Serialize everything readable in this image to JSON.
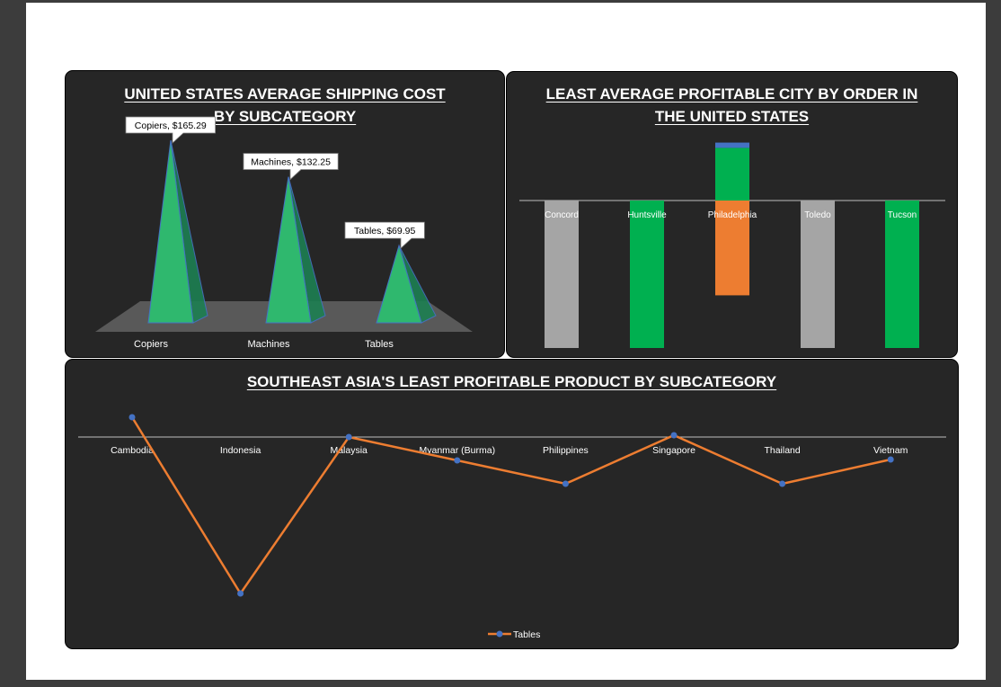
{
  "colors": {
    "panel_bg": "#262626",
    "pyramid_green": "#2fb86e",
    "green": "#00b050",
    "gray": "#a5a5a5",
    "orange": "#ed7d31",
    "blue": "#4472c4",
    "axis": "#bfbfbf",
    "text": "#ffffff"
  },
  "charts": {
    "shipping": {
      "title_line1": "UNITED STATES AVERAGE SHIPPING COST",
      "title_line2": "BY SUBCATEGORY"
    },
    "city": {
      "title_line1": "LEAST AVERAGE PROFITABLE CITY BY ORDER IN",
      "title_line2": "THE UNITED STATES"
    },
    "sea": {
      "title": "SOUTHEAST ASIA'S LEAST PROFITABLE PRODUCT BY SUBCATEGORY"
    }
  },
  "chart_data": [
    {
      "type": "bar",
      "style": "3d-pyramid",
      "title": "UNITED STATES AVERAGE SHIPPING COST BY SUBCATEGORY",
      "categories": [
        "Copiers",
        "Machines",
        "Tables"
      ],
      "values": [
        165.29,
        132.25,
        69.95
      ],
      "data_labels": [
        "Copiers, $165.29",
        "Machines, $132.25",
        "Tables, $69.95"
      ],
      "ylim": [
        0,
        165.29
      ]
    },
    {
      "type": "bar",
      "style": "stacked",
      "title": "LEAST AVERAGE PROFITABLE CITY BY ORDER IN THE UNITED STATES",
      "categories": [
        "Concord",
        "Huntsville",
        "Philadelphia",
        "Toledo",
        "Tucson"
      ],
      "series": [
        {
          "values": [
            0,
            0,
            50,
            0,
            0
          ],
          "color": "#00b050"
        },
        {
          "values": [
            0,
            0,
            5,
            0,
            0
          ],
          "color": "#4472c4"
        },
        {
          "values": [
            -140,
            -140,
            -90,
            -140,
            -140
          ],
          "color_by_category": [
            "#a5a5a5",
            "#00b050",
            "#ed7d31",
            "#a5a5a5",
            "#00b050"
          ]
        }
      ],
      "ylim": [
        -140,
        50
      ],
      "legend": "none"
    },
    {
      "type": "line",
      "title": "SOUTHEAST ASIA'S LEAST PROFITABLE PRODUCT BY SUBCATEGORY",
      "categories": [
        "Cambodia",
        "Indonesia",
        "Malaysia",
        "Myanmar (Burma)",
        "Philippines",
        "Singapore",
        "Thailand",
        "Vietnam"
      ],
      "series": [
        {
          "name": "Tables",
          "values": [
            22,
            -174,
            0,
            -26,
            -52,
            2,
            -52,
            -25
          ]
        }
      ],
      "ylim": [
        -180,
        30
      ],
      "legend": "bottom"
    }
  ]
}
